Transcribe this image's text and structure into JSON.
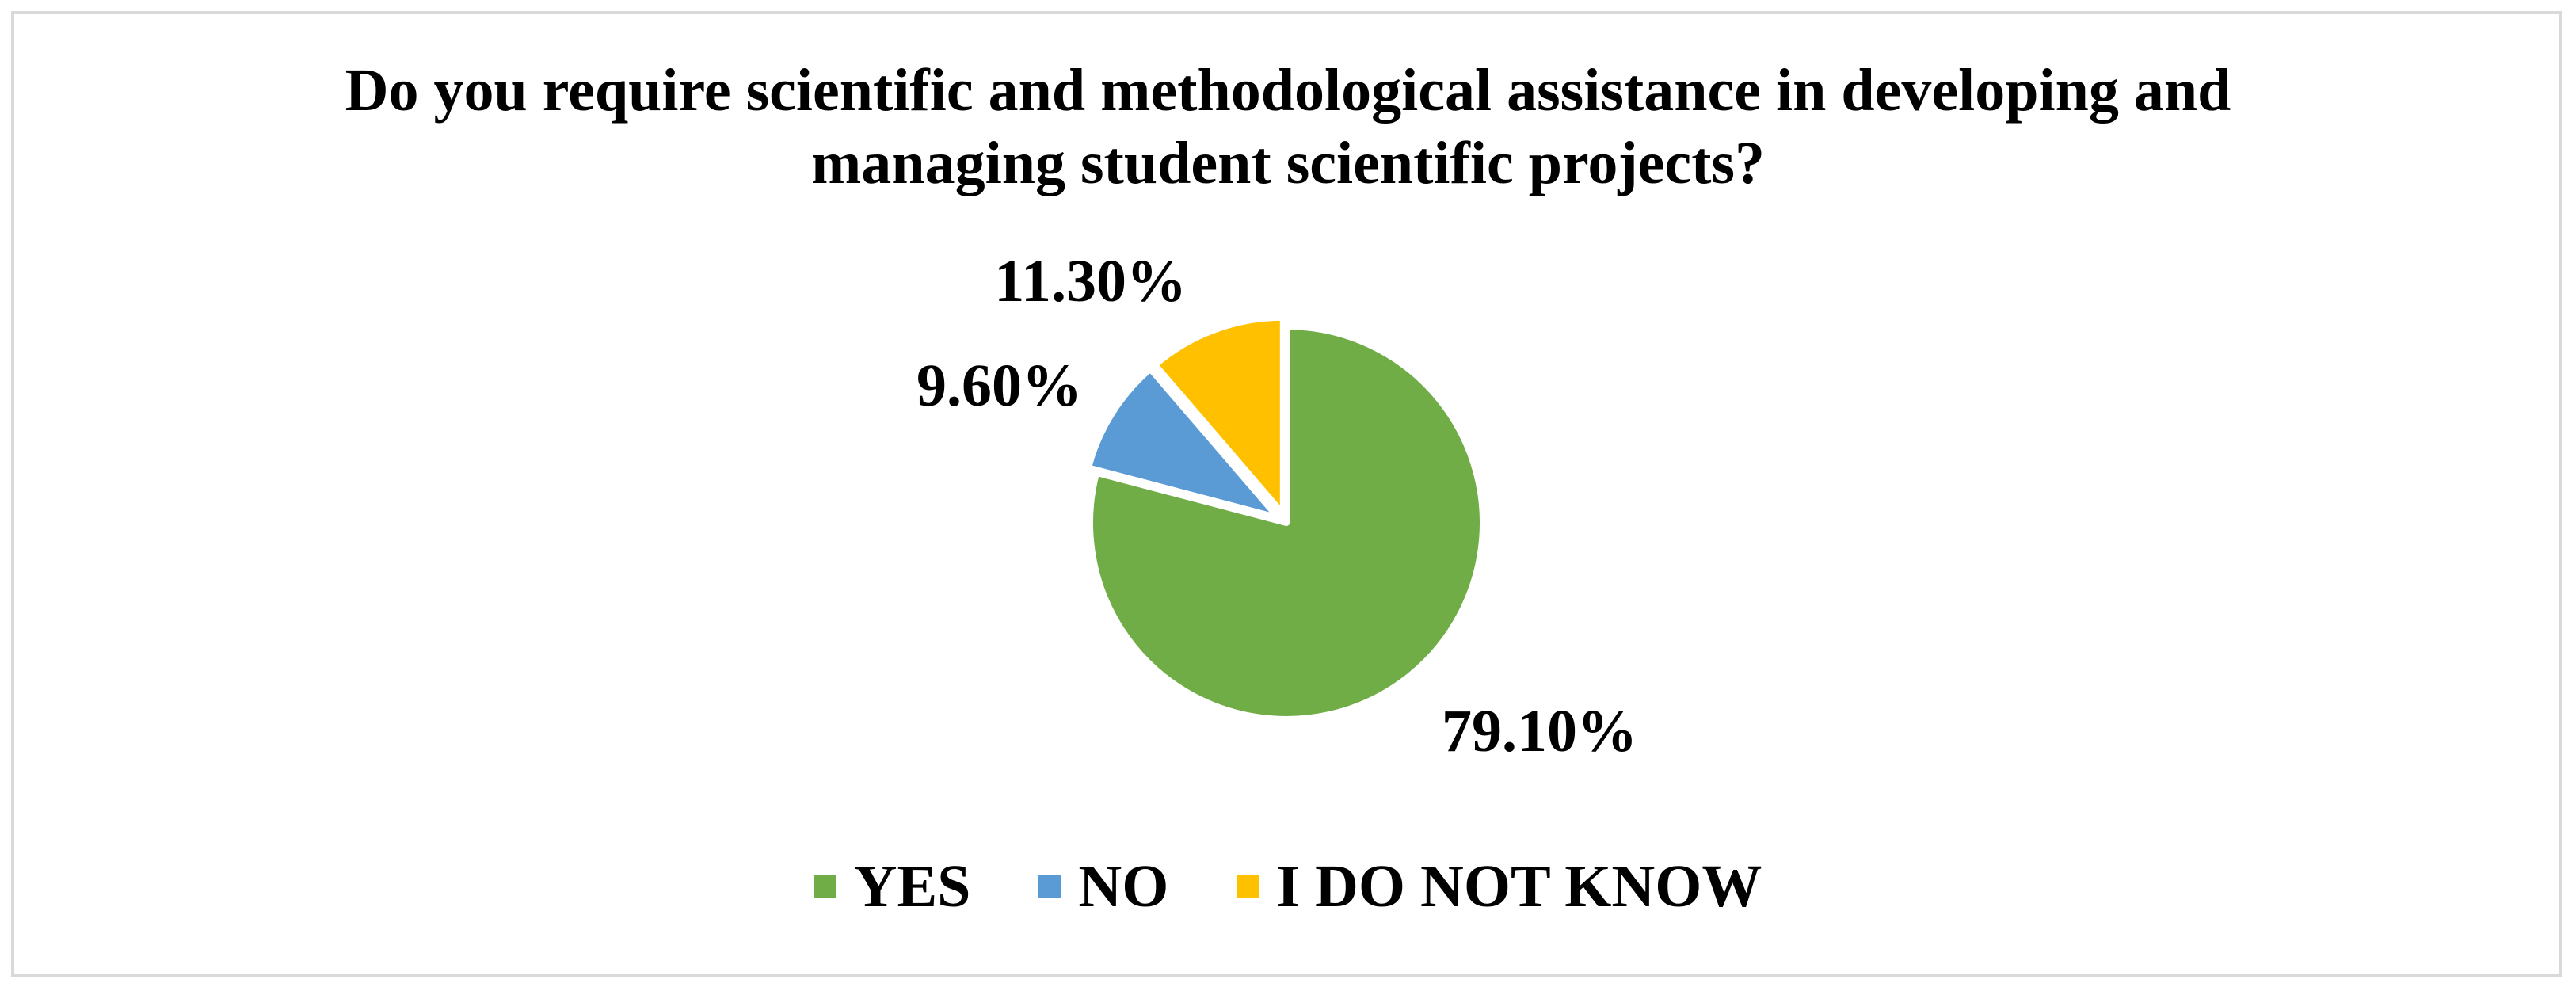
{
  "chart_data": {
    "type": "pie",
    "title": "Do you require scientific and methodological assistance in developing and managing student scientific projects?",
    "title_lines": [
      "Do you require scientific and methodological assistance in developing and",
      "managing student scientific projects?"
    ],
    "categories": [
      "YES",
      "NO",
      "I DO NOT KNOW"
    ],
    "values": [
      79.1,
      9.6,
      11.3
    ],
    "value_labels": [
      "79.10%",
      "9.60%",
      "11.30%"
    ],
    "colors": [
      "#70AD47",
      "#5B9BD5",
      "#FFC000"
    ],
    "legend_position": "bottom",
    "start_angle": "12 o'clock",
    "direction": "clockwise"
  }
}
